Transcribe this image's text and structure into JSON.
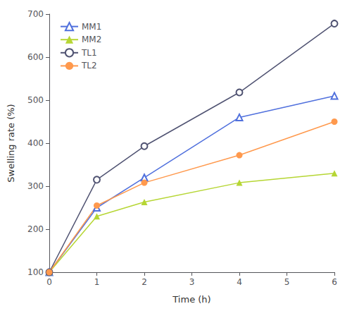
{
  "chart_data": {
    "type": "line",
    "xlabel": "Time (h)",
    "ylabel": "Swelling rate (%)",
    "x": [
      0,
      1,
      2,
      4,
      6
    ],
    "series": [
      {
        "name": "MM1",
        "values": [
          100,
          250,
          320,
          460,
          510
        ],
        "marker": "open-triangle"
      },
      {
        "name": "MM2",
        "values": [
          100,
          230,
          263,
          308,
          330
        ],
        "marker": "triangle"
      },
      {
        "name": "TL1",
        "values": [
          100,
          315,
          393,
          518,
          678
        ],
        "marker": "open-circle"
      },
      {
        "name": "TL2",
        "values": [
          100,
          255,
          308,
          372,
          450
        ],
        "marker": "circle"
      }
    ],
    "xlim": [
      0,
      6
    ],
    "ylim": [
      100,
      700
    ],
    "xticks": [
      0,
      1,
      2,
      3,
      4,
      5,
      6
    ],
    "yticks": [
      100,
      200,
      300,
      400,
      500,
      600,
      700
    ],
    "grid": false,
    "legend": "upper left"
  }
}
